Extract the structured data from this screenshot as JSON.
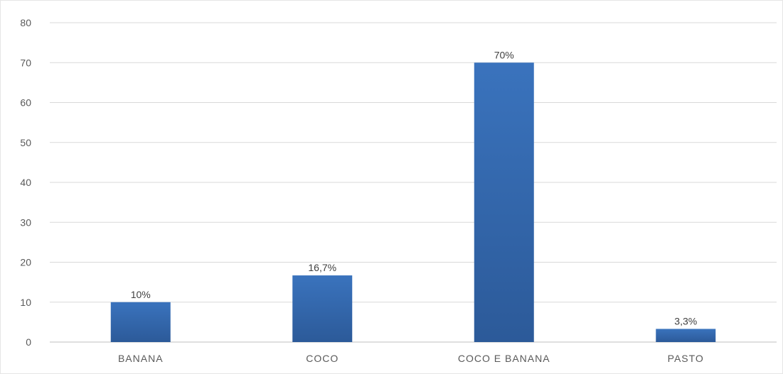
{
  "chart_data": {
    "type": "bar",
    "categories": [
      "BANANA",
      "COCO",
      "COCO E BANANA",
      "PASTO"
    ],
    "series": [
      {
        "values": [
          10,
          16.7,
          70,
          3.3
        ]
      }
    ],
    "data_labels": [
      "10%",
      "16,7%",
      "70%",
      "3,3%"
    ],
    "ylim": [
      0,
      80
    ],
    "yticks": [
      0,
      10,
      20,
      30,
      40,
      50,
      60,
      70,
      80
    ],
    "grid": true,
    "legend": "none",
    "bar_color": "#3a73bd",
    "bar_color_dark": "#2c5a99"
  }
}
